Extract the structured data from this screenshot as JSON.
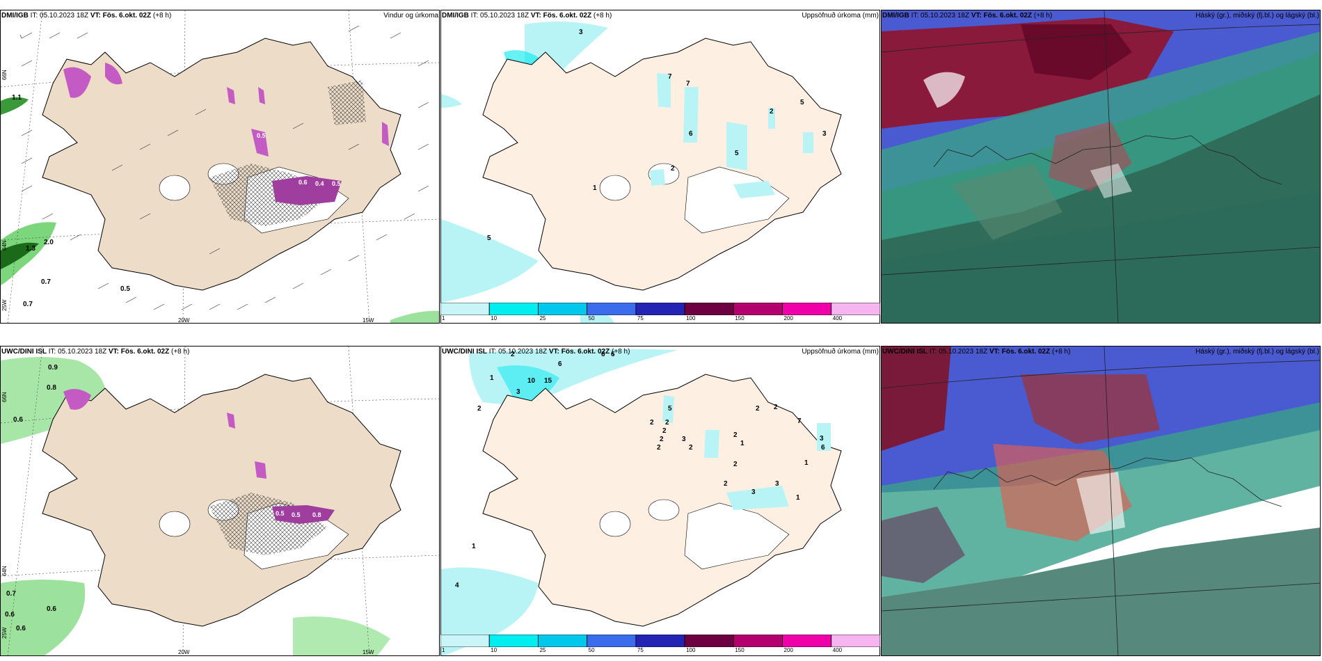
{
  "panels": [
    {
      "id": "r1c1",
      "model": "DMI/IGB",
      "run": "IT: 05.10.2023 18Z",
      "valid": "VT: Fös. 6.okt. 02Z",
      "lead": "(+8 h)",
      "title": "Vindur og úrkoma",
      "labels": [
        "1.1",
        "1.3",
        "2.0",
        "0.7",
        "0.7",
        "0.5"
      ],
      "inner_labels": [
        "0.5",
        "0.6",
        "0.4",
        "0.5"
      ]
    },
    {
      "id": "r1c2",
      "model": "DMI/IGB",
      "run": "IT: 05.10.2023 18Z",
      "valid": "VT: Fös. 6.okt. 02Z",
      "lead": "(+8 h)",
      "title": "Uppsöfnuð úrkoma (mm)",
      "labels": [
        "3",
        "7",
        "7",
        "6",
        "5",
        "2",
        "5",
        "3",
        "2",
        "1",
        "5"
      ]
    },
    {
      "id": "r1c3",
      "model": "DMI/IGB",
      "run": "IT: 05.10.2023 18Z",
      "valid": "VT: Fös. 6.okt. 02Z",
      "lead": "(+8 h)",
      "title": "Háský (gr.), miðský (fj.bl.) og lágský (bl.)"
    },
    {
      "id": "r2c1",
      "model": "UWC/DINI ISL",
      "run": "IT: 05.10.2023 18Z",
      "valid": "VT: Fös. 6.okt. 02Z",
      "lead": "(+8 h)",
      "title": "",
      "labels": [
        "0.9",
        "0.8",
        "0.6",
        "0.7",
        "0.6",
        "0.6",
        "0.6"
      ],
      "inner_labels": [
        "0.5",
        "0.5",
        "0.8"
      ]
    },
    {
      "id": "r2c2",
      "model": "UWC/DINI ISL",
      "run": "IT: 05.10.2023 18Z",
      "valid": "VT: Fös. 6.okt. 02Z",
      "lead": "(+8 h)",
      "title": "Uppsöfnuð úrkoma (mm)",
      "labels": [
        "2",
        "6",
        "6",
        "6",
        "1",
        "10",
        "15",
        "2",
        "3",
        "5",
        "2",
        "2",
        "2",
        "3",
        "2",
        "2",
        "2",
        "2",
        "2",
        "7",
        "2",
        "3",
        "6",
        "1",
        "1",
        "2",
        "2",
        "3",
        "3",
        "1",
        "1",
        "4"
      ]
    },
    {
      "id": "r2c3",
      "model": "UWC/DINI ISL",
      "run": "IT: 05.10.2023 18Z",
      "valid": "VT: Fös. 6.okt. 02Z",
      "lead": "(+8 h)",
      "title": "Háský (gr.), miðský (fj.bl.) og lágský (bl.)"
    }
  ],
  "axes": {
    "lon_left": "20W",
    "lon_right": "15W",
    "lat_top": "66N",
    "lat_bottom": "64N",
    "lon_far": "25W"
  },
  "colorbar": {
    "ticks": [
      "1",
      "10",
      "25",
      "50",
      "75",
      "100",
      "150",
      "200",
      "400"
    ],
    "colors": [
      "#c8f6f8",
      "#00eef0",
      "#00c8ec",
      "#3a6cec",
      "#2424b4",
      "#6c0040",
      "#b4006e",
      "#f000a8",
      "#f6b4f0"
    ]
  }
}
